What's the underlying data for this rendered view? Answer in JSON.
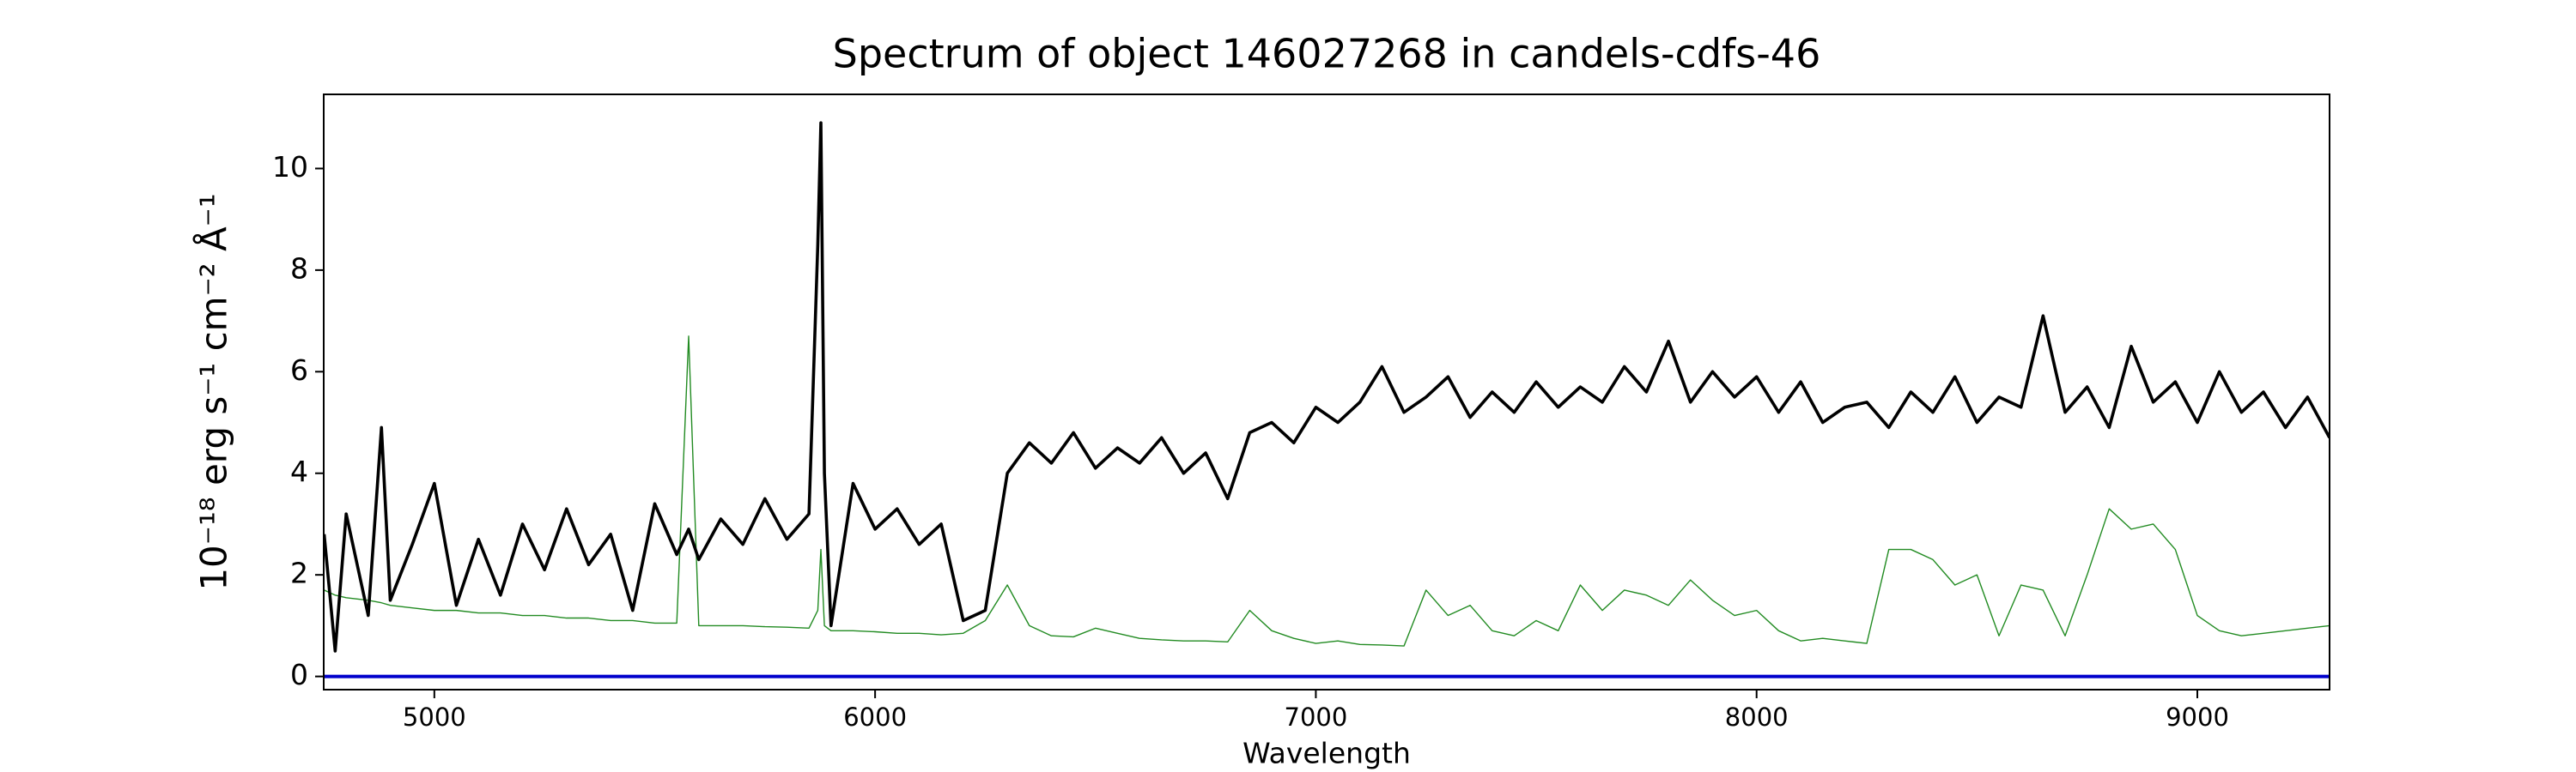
{
  "chart_data": {
    "type": "line",
    "title": "Spectrum of object 146027268 in candels-cdfs-46",
    "xlabel": "Wavelength",
    "ylabel": "10⁻¹⁸ erg s⁻¹ cm⁻² Å⁻¹",
    "xlim": [
      4749,
      9300
    ],
    "ylim": [
      -0.26,
      11.46
    ],
    "xticks": [
      5000,
      6000,
      7000,
      8000,
      9000
    ],
    "yticks": [
      0,
      2,
      4,
      6,
      8,
      10
    ],
    "grid": false,
    "x": [
      4750,
      4775,
      4800,
      4850,
      4880,
      4900,
      4950,
      5000,
      5050,
      5100,
      5150,
      5200,
      5250,
      5300,
      5350,
      5400,
      5450,
      5500,
      5550,
      5577,
      5600,
      5650,
      5700,
      5750,
      5800,
      5850,
      5870,
      5877,
      5885,
      5900,
      5950,
      6000,
      6050,
      6100,
      6150,
      6200,
      6250,
      6300,
      6350,
      6400,
      6450,
      6500,
      6550,
      6600,
      6650,
      6700,
      6750,
      6800,
      6850,
      6900,
      6950,
      7000,
      7050,
      7100,
      7150,
      7200,
      7250,
      7300,
      7350,
      7400,
      7450,
      7500,
      7550,
      7600,
      7650,
      7700,
      7750,
      7800,
      7850,
      7900,
      7950,
      8000,
      8050,
      8100,
      8150,
      8200,
      8250,
      8300,
      8350,
      8400,
      8450,
      8500,
      8550,
      8600,
      8650,
      8700,
      8750,
      8800,
      8850,
      8900,
      8950,
      9000,
      9050,
      9100,
      9150,
      9200,
      9250,
      9300
    ],
    "series": [
      {
        "color": "#0000cc",
        "width": 4,
        "values": [
          0,
          0,
          0,
          0,
          0,
          0,
          0,
          0,
          0,
          0,
          0,
          0,
          0,
          0,
          0,
          0,
          0,
          0,
          0,
          0,
          0,
          0,
          0,
          0,
          0,
          0,
          0,
          0,
          0,
          0,
          0,
          0,
          0,
          0,
          0,
          0,
          0,
          0,
          0,
          0,
          0,
          0,
          0,
          0,
          0,
          0,
          0,
          0,
          0,
          0,
          0,
          0,
          0,
          0,
          0,
          0,
          0,
          0,
          0,
          0,
          0,
          0,
          0,
          0,
          0,
          0,
          0,
          0,
          0,
          0,
          0,
          0,
          0,
          0,
          0,
          0,
          0,
          0,
          0,
          0,
          0,
          0,
          0,
          0,
          0,
          0,
          0,
          0,
          0,
          0,
          0,
          0,
          0,
          0,
          0,
          0,
          0,
          0
        ]
      },
      {
        "color": "#228b22",
        "width": 1.4,
        "values": [
          1.7,
          1.6,
          1.55,
          1.5,
          1.45,
          1.4,
          1.35,
          1.3,
          1.3,
          1.25,
          1.25,
          1.2,
          1.2,
          1.15,
          1.15,
          1.1,
          1.1,
          1.05,
          1.05,
          6.7,
          1.0,
          1.0,
          1.0,
          0.98,
          0.97,
          0.95,
          1.3,
          2.5,
          1.0,
          0.9,
          0.9,
          0.88,
          0.85,
          0.85,
          0.82,
          0.85,
          1.1,
          1.8,
          1.0,
          0.8,
          0.78,
          0.95,
          0.85,
          0.75,
          0.72,
          0.7,
          0.7,
          0.68,
          1.3,
          0.9,
          0.75,
          0.65,
          0.7,
          0.63,
          0.62,
          0.6,
          1.7,
          1.2,
          1.4,
          0.9,
          0.8,
          1.1,
          0.9,
          1.8,
          1.3,
          1.7,
          1.6,
          1.4,
          1.9,
          1.5,
          1.2,
          1.3,
          0.9,
          0.7,
          0.75,
          0.7,
          0.65,
          2.5,
          2.5,
          2.3,
          1.8,
          2.0,
          0.8,
          1.8,
          1.7,
          0.8,
          2.0,
          3.3,
          2.9,
          3.0,
          2.5,
          1.2,
          0.9,
          0.8,
          0.85,
          0.9,
          0.95,
          1.0
        ]
      },
      {
        "color": "#000000",
        "width": 3.6,
        "values": [
          2.8,
          0.5,
          3.2,
          1.2,
          4.9,
          1.5,
          2.6,
          3.8,
          1.4,
          2.7,
          1.6,
          3.0,
          2.1,
          3.3,
          2.2,
          2.8,
          1.3,
          3.4,
          2.4,
          2.9,
          2.3,
          3.1,
          2.6,
          3.5,
          2.7,
          3.2,
          8.5,
          10.9,
          4.0,
          1.0,
          3.8,
          2.9,
          3.3,
          2.6,
          3.0,
          1.1,
          1.3,
          4.0,
          4.6,
          4.2,
          4.8,
          4.1,
          4.5,
          4.2,
          4.7,
          4.0,
          4.4,
          3.5,
          4.8,
          5.0,
          4.6,
          5.3,
          5.0,
          5.4,
          6.1,
          5.2,
          5.5,
          5.9,
          5.1,
          5.6,
          5.2,
          5.8,
          5.3,
          5.7,
          5.4,
          6.1,
          5.6,
          6.6,
          5.4,
          6.0,
          5.5,
          5.9,
          5.2,
          5.8,
          5.0,
          5.3,
          5.4,
          4.9,
          5.6,
          5.2,
          5.9,
          5.0,
          5.5,
          5.3,
          7.1,
          5.2,
          5.7,
          4.9,
          6.5,
          5.4,
          5.8,
          5.0,
          6.0,
          5.2,
          5.6,
          4.9,
          5.5,
          4.7
        ]
      }
    ]
  }
}
